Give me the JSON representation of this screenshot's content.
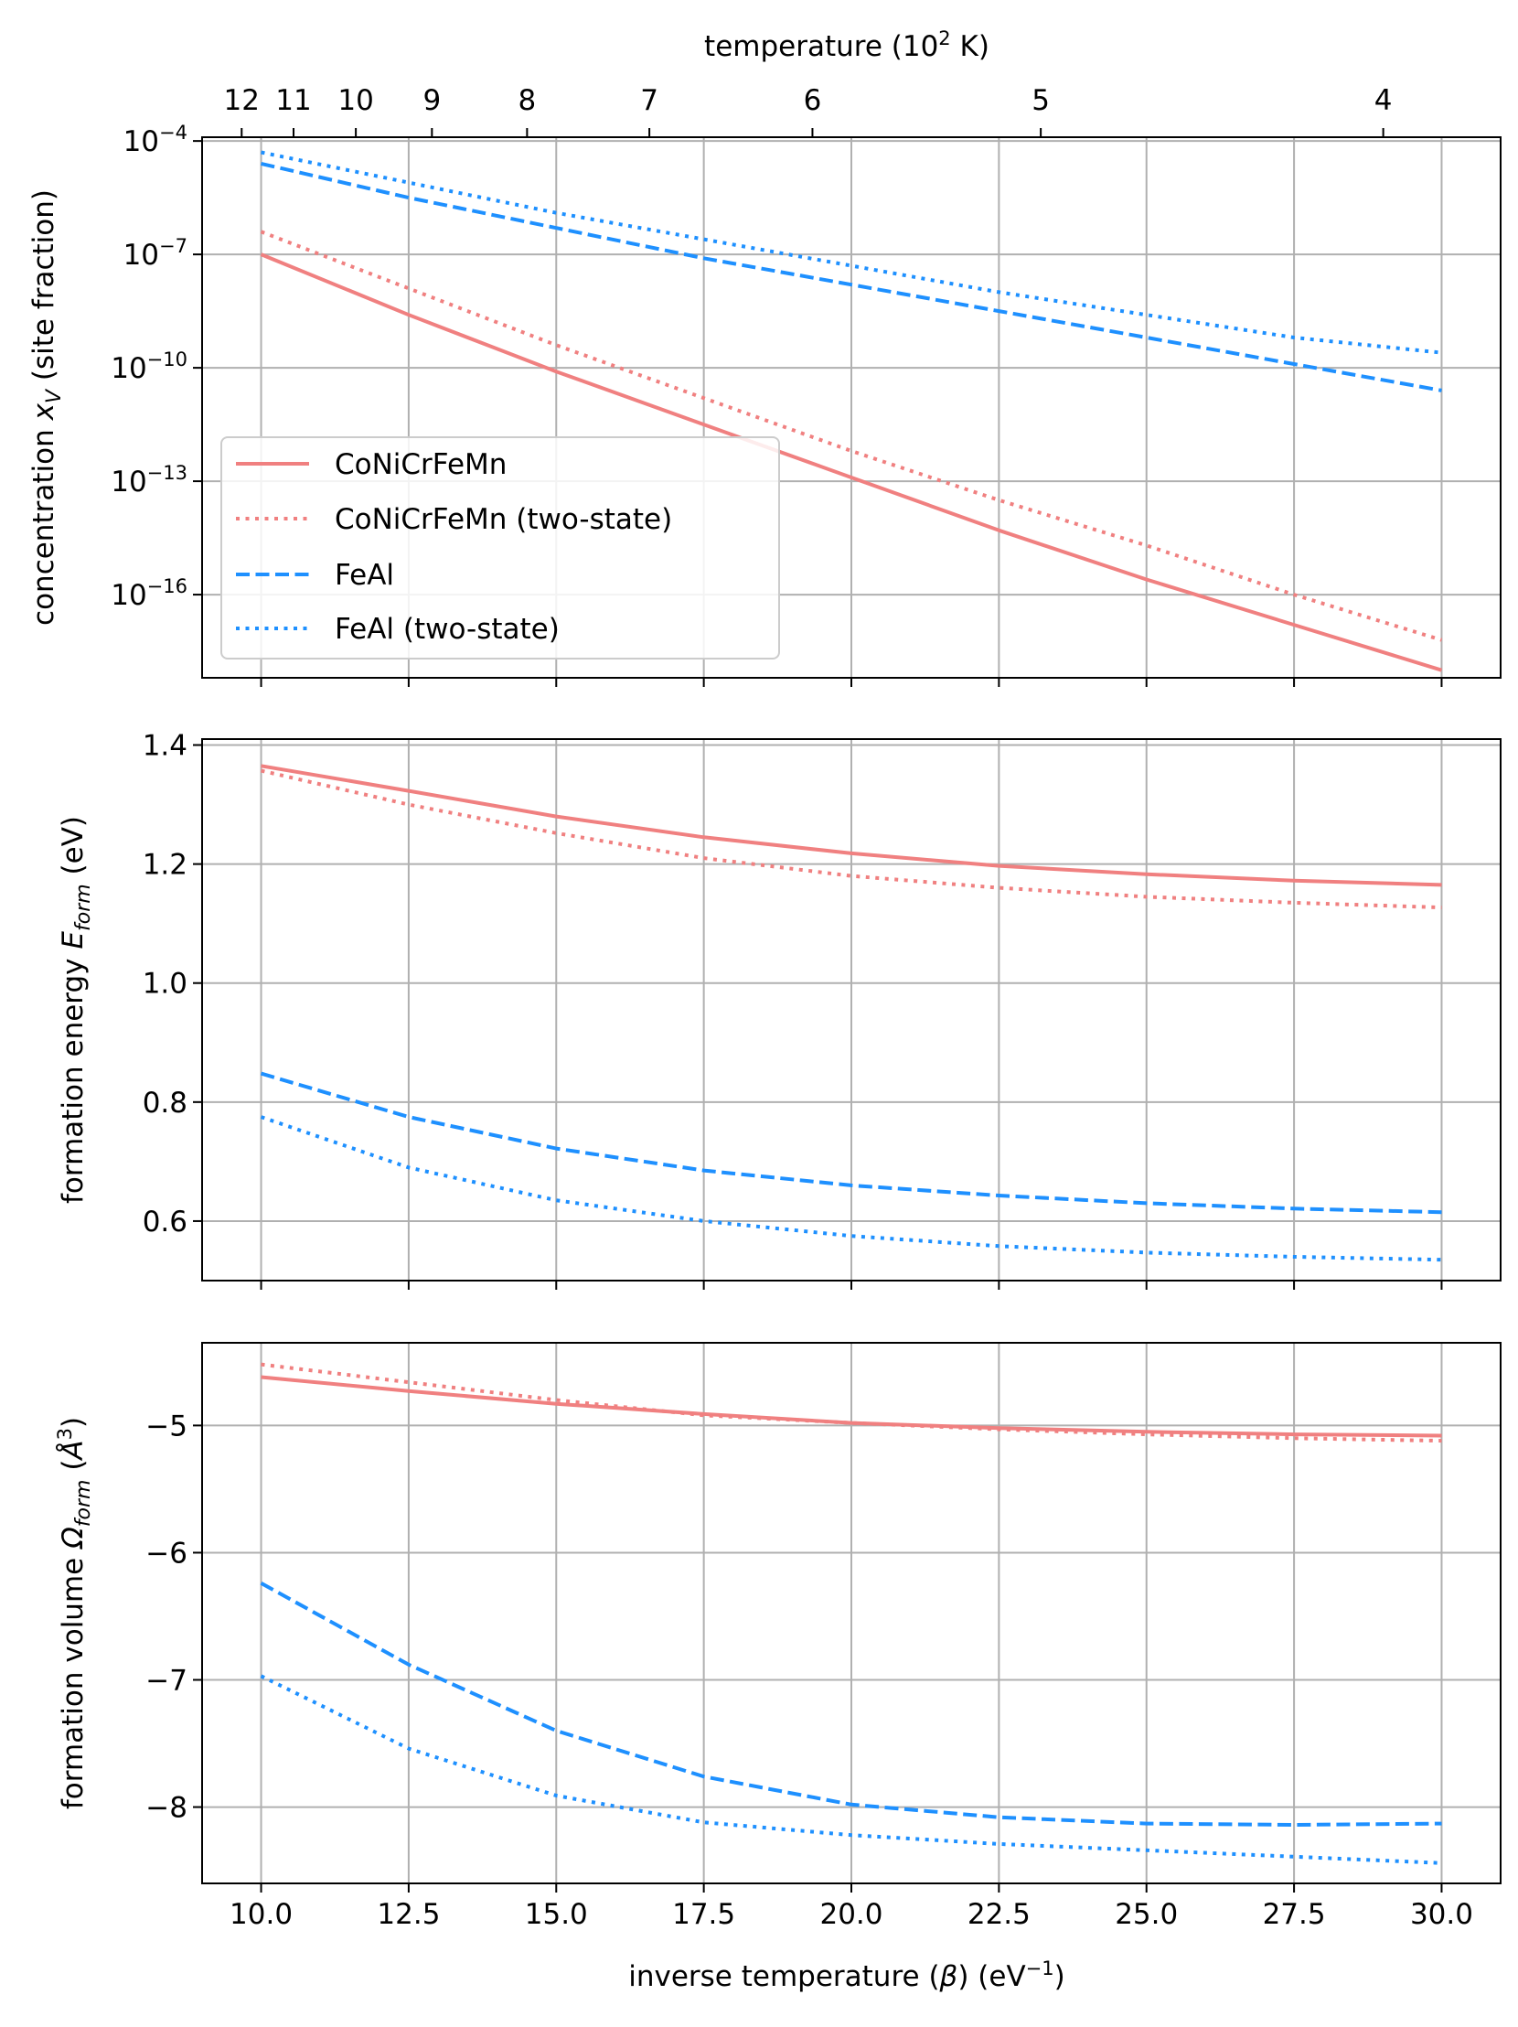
{
  "figure": {
    "top_axis": {
      "label_prefix": "temperature (10",
      "label_sup": "2",
      "label_suffix": " K)",
      "ticks": [
        {
          "label": "12",
          "temperature_1e2K": 12
        },
        {
          "label": "11",
          "temperature_1e2K": 11
        },
        {
          "label": "10",
          "temperature_1e2K": 10
        },
        {
          "label": "9",
          "temperature_1e2K": 9
        },
        {
          "label": "8",
          "temperature_1e2K": 8
        },
        {
          "label": "7",
          "temperature_1e2K": 7
        },
        {
          "label": "6",
          "temperature_1e2K": 6
        },
        {
          "label": "5",
          "temperature_1e2K": 5
        },
        {
          "label": "4",
          "temperature_1e2K": 4
        }
      ]
    },
    "x_axis": {
      "label_prefix": "inverse temperature (",
      "label_beta": "β",
      "label_mid": ") (eV",
      "label_sup": "−1",
      "label_suffix": ")",
      "range": [
        9.0,
        31.0
      ],
      "ticks": [
        {
          "label": "10.0",
          "value": 10.0
        },
        {
          "label": "12.5",
          "value": 12.5
        },
        {
          "label": "15.0",
          "value": 15.0
        },
        {
          "label": "17.5",
          "value": 17.5
        },
        {
          "label": "20.0",
          "value": 20.0
        },
        {
          "label": "22.5",
          "value": 22.5
        },
        {
          "label": "25.0",
          "value": 25.0
        },
        {
          "label": "27.5",
          "value": 27.5
        },
        {
          "label": "30.0",
          "value": 30.0
        }
      ]
    },
    "legend": {
      "position": "lower-left",
      "entries": [
        {
          "label": "CoNiCrFeMn",
          "color": "#f08080",
          "dash": "solid"
        },
        {
          "label": "CoNiCrFeMn (two-state)",
          "color": "#f08080",
          "dash": "dotted"
        },
        {
          "label": "FeAl",
          "color": "#1e90ff",
          "dash": "dashed"
        },
        {
          "label": "FeAl (two-state)",
          "color": "#1e90ff",
          "dash": "dotted"
        }
      ]
    },
    "colors": {
      "conicrfemn": "#f08080",
      "feal": "#1e90ff",
      "grid": "#b0b0b0"
    }
  },
  "chart_data": [
    {
      "type": "line",
      "panel": "concentration",
      "scale": "log",
      "ylabel_prefix": "concentration ",
      "ylabel_var": "x",
      "ylabel_sub": "V",
      "ylabel_suffix": " (site fraction)",
      "ylim_log10": [
        -18.2,
        -3.9
      ],
      "yticks": [
        {
          "base": "10",
          "exp": "−4",
          "log10": -4
        },
        {
          "base": "10",
          "exp": "−7",
          "log10": -7
        },
        {
          "base": "10",
          "exp": "−10",
          "log10": -10
        },
        {
          "base": "10",
          "exp": "−13",
          "log10": -13
        },
        {
          "base": "10",
          "exp": "−16",
          "log10": -16
        }
      ],
      "x": [
        10,
        12.5,
        15,
        17.5,
        20,
        22.5,
        25,
        27.5,
        30
      ],
      "series": [
        {
          "name": "CoNiCrFeMn",
          "log10_values": [
            -7.0,
            -8.6,
            -10.1,
            -11.5,
            -12.9,
            -14.3,
            -15.6,
            -16.8,
            -18.0
          ]
        },
        {
          "name": "CoNiCrFeMn (two-state)",
          "log10_values": [
            -6.4,
            -7.9,
            -9.4,
            -10.8,
            -12.2,
            -13.5,
            -14.7,
            -16.0,
            -17.2
          ]
        },
        {
          "name": "FeAl",
          "log10_values": [
            -4.6,
            -5.5,
            -6.3,
            -7.1,
            -7.8,
            -8.5,
            -9.2,
            -9.9,
            -10.6
          ]
        },
        {
          "name": "FeAl (two-state)",
          "log10_values": [
            -4.3,
            -5.1,
            -5.9,
            -6.6,
            -7.3,
            -8.0,
            -8.6,
            -9.2,
            -9.6
          ]
        }
      ]
    },
    {
      "type": "line",
      "panel": "formation-energy",
      "ylabel_prefix": "formation energy ",
      "ylabel_var": "E",
      "ylabel_sub": "form",
      "ylabel_suffix": " (eV)",
      "ylim": [
        0.5,
        1.41
      ],
      "yticks": [
        {
          "label": "0.6",
          "value": 0.6
        },
        {
          "label": "0.8",
          "value": 0.8
        },
        {
          "label": "1.0",
          "value": 1.0
        },
        {
          "label": "1.2",
          "value": 1.2
        },
        {
          "label": "1.4",
          "value": 1.4
        }
      ],
      "x": [
        10,
        12.5,
        15,
        17.5,
        20,
        22.5,
        25,
        27.5,
        30
      ],
      "series": [
        {
          "name": "CoNiCrFeMn",
          "values": [
            1.365,
            1.323,
            1.28,
            1.245,
            1.218,
            1.197,
            1.183,
            1.172,
            1.165
          ]
        },
        {
          "name": "CoNiCrFeMn (two-state)",
          "values": [
            1.357,
            1.3,
            1.252,
            1.21,
            1.18,
            1.16,
            1.145,
            1.135,
            1.127
          ]
        },
        {
          "name": "FeAl",
          "values": [
            0.848,
            0.775,
            0.722,
            0.685,
            0.66,
            0.643,
            0.63,
            0.621,
            0.615
          ]
        },
        {
          "name": "FeAl (two-state)",
          "values": [
            0.775,
            0.69,
            0.635,
            0.6,
            0.575,
            0.558,
            0.547,
            0.54,
            0.535
          ]
        }
      ]
    },
    {
      "type": "line",
      "panel": "formation-volume",
      "ylabel_prefix": "formation volume ",
      "ylabel_var": "Ω",
      "ylabel_sub": "form",
      "ylabel_unit_open": " (",
      "ylabel_unit": "Å",
      "ylabel_unit_sup": "3",
      "ylabel_unit_close": ")",
      "ylim": [
        -8.6,
        -4.35
      ],
      "yticks": [
        {
          "label": "−5",
          "value": -5
        },
        {
          "label": "−6",
          "value": -6
        },
        {
          "label": "−7",
          "value": -7
        },
        {
          "label": "−8",
          "value": -8
        }
      ],
      "x": [
        10,
        12.5,
        15,
        17.5,
        20,
        22.5,
        25,
        27.5,
        30
      ],
      "series": [
        {
          "name": "CoNiCrFeMn",
          "values": [
            -4.62,
            -4.73,
            -4.83,
            -4.91,
            -4.98,
            -5.02,
            -5.05,
            -5.07,
            -5.08
          ]
        },
        {
          "name": "CoNiCrFeMn (two-state)",
          "values": [
            -4.52,
            -4.66,
            -4.8,
            -4.92,
            -4.98,
            -5.03,
            -5.07,
            -5.1,
            -5.12
          ]
        },
        {
          "name": "FeAl",
          "values": [
            -6.24,
            -6.88,
            -7.4,
            -7.76,
            -7.98,
            -8.08,
            -8.13,
            -8.14,
            -8.13
          ]
        },
        {
          "name": "FeAl (two-state)",
          "values": [
            -6.97,
            -7.54,
            -7.91,
            -8.12,
            -8.22,
            -8.29,
            -8.34,
            -8.39,
            -8.44
          ]
        }
      ]
    }
  ]
}
